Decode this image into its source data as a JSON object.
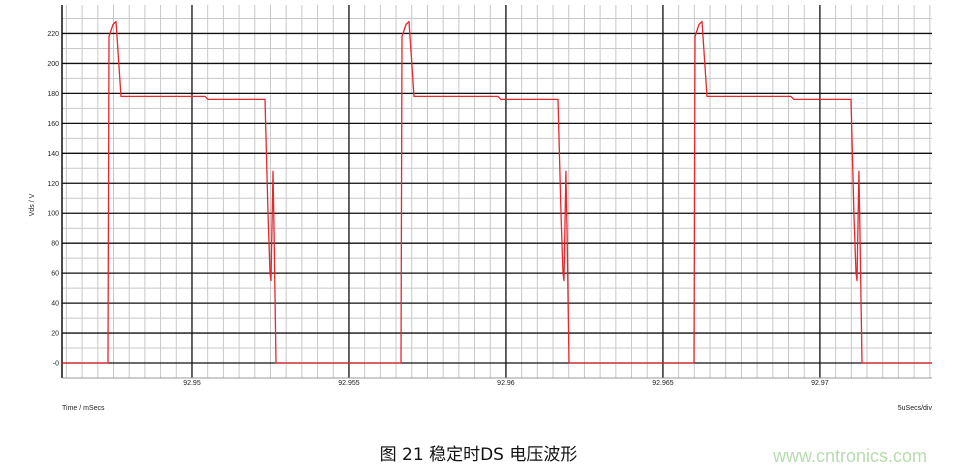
{
  "chart_data": {
    "type": "line",
    "title": "",
    "xlabel": "Time / mSecs",
    "ylabel": "Vds / V",
    "scale_label": "5uSecs/div",
    "xlim": [
      92.94586,
      92.97357
    ],
    "ylim": [
      -10,
      239
    ],
    "x_ticks": [
      92.95,
      92.955,
      92.96,
      92.965,
      92.97
    ],
    "x_tick_labels": [
      "92.95",
      "92.955",
      "92.96",
      "92.965",
      "92.97"
    ],
    "y_ticks": [
      0,
      20,
      40,
      60,
      80,
      100,
      120,
      140,
      160,
      180,
      200,
      220
    ],
    "y_tick_labels": [
      "-0",
      "20",
      "40",
      "60",
      "80",
      "100",
      "120",
      "140",
      "160",
      "180",
      "200",
      "220"
    ],
    "x_minor_step": 0.0005,
    "y_minor_step": 10,
    "grid": true,
    "colors": {
      "series": "#e8262b",
      "major_grid": "#111111",
      "minor_grid": "#c8c8c8"
    },
    "series": [
      {
        "x": [
          92.94586,
          92.947325,
          92.947357,
          92.947484,
          92.94758,
          92.947739,
          92.950414,
          92.95051,
          92.952325,
          92.95242,
          92.952484,
          92.952516,
          92.95258,
          92.952612,
          92.952675,
          92.956657,
          92.956689,
          92.956816,
          92.956911,
          92.957071,
          92.959746,
          92.959841,
          92.961657,
          92.961752,
          92.961816,
          92.961848,
          92.961911,
          92.961943,
          92.962007,
          92.965989,
          92.966021,
          92.966148,
          92.966243,
          92.966403,
          92.969078,
          92.969173,
          92.970989,
          92.971084,
          92.971148,
          92.97118,
          92.971243,
          92.971275,
          92.971339,
          92.973569
        ],
        "y": [
          0,
          0,
          218,
          226,
          228,
          178,
          178,
          176,
          176,
          100,
          60,
          55,
          128,
          90,
          0,
          0,
          218,
          226,
          228,
          178,
          178,
          176,
          176,
          100,
          60,
          55,
          128,
          90,
          0,
          0,
          218,
          226,
          228,
          178,
          178,
          176,
          176,
          100,
          60,
          55,
          128,
          90,
          0,
          0
        ]
      }
    ]
  },
  "caption": "图 21 稳定时DS 电压波形",
  "watermark": "www.cntronics.com"
}
